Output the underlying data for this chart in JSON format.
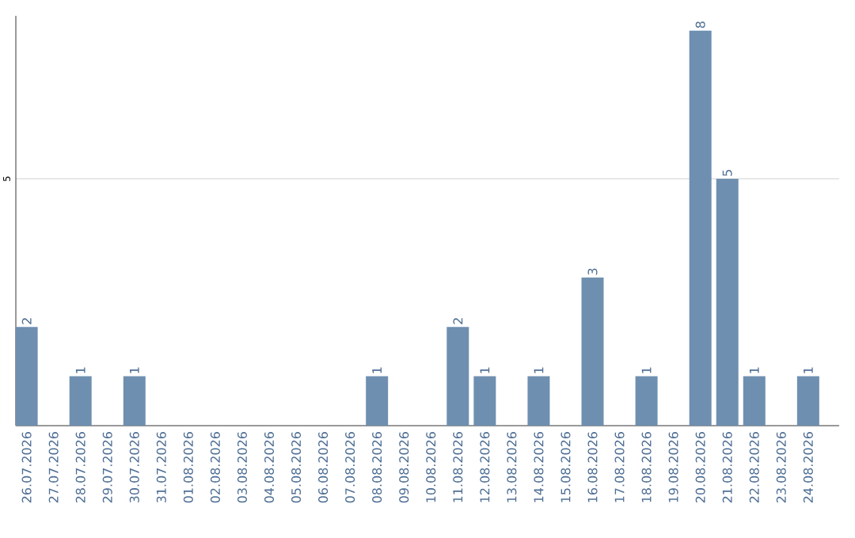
{
  "chart_data": {
    "type": "bar",
    "categories": [
      "26.07.2026",
      "27.07.2026",
      "28.07.2026",
      "29.07.2026",
      "30.07.2026",
      "31.07.2026",
      "01.08.2026",
      "02.08.2026",
      "03.08.2026",
      "04.08.2026",
      "05.08.2026",
      "06.08.2026",
      "07.08.2026",
      "08.08.2026",
      "09.08.2026",
      "10.08.2026",
      "11.08.2026",
      "12.08.2026",
      "13.08.2026",
      "14.08.2026",
      "15.08.2026",
      "16.08.2026",
      "17.08.2026",
      "18.08.2026",
      "19.08.2026",
      "20.08.2026",
      "21.08.2026",
      "22.08.2026",
      "23.08.2026",
      "24.08.2026"
    ],
    "values": [
      2,
      0,
      1,
      0,
      1,
      0,
      0,
      0,
      0,
      0,
      0,
      0,
      0,
      1,
      0,
      0,
      2,
      1,
      0,
      1,
      0,
      3,
      0,
      1,
      0,
      8,
      5,
      1,
      0,
      1
    ],
    "value_labels": [
      "2",
      null,
      "1",
      null,
      "1",
      null,
      null,
      null,
      null,
      null,
      null,
      null,
      null,
      "1",
      null,
      null,
      "2",
      "1",
      null,
      "1",
      null,
      "3",
      null,
      "1",
      null,
      "8",
      "5",
      "1",
      null,
      "1"
    ],
    "color": "#6e8fb0",
    "ylim": [
      0,
      8.3
    ],
    "yticks": [
      5
    ],
    "grid": "y"
  }
}
